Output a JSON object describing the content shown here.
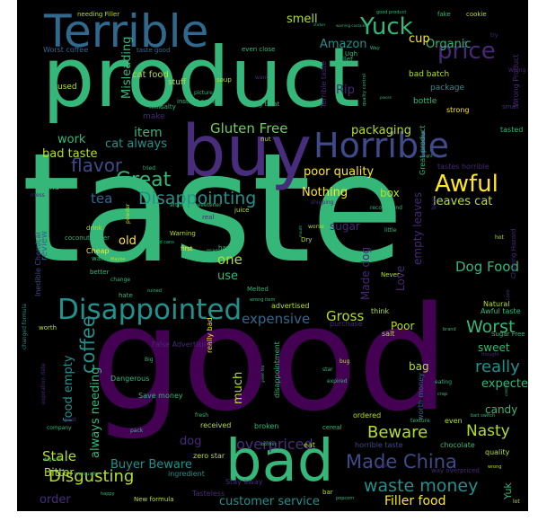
{
  "palette": {
    "background": "#000000",
    "green": "#35b779",
    "green_light": "#4cc26c",
    "teal": "#21918c",
    "teal_dark": "#26828e",
    "blue": "#31688e",
    "slate": "#3e4a89",
    "indigo": "#472d7b",
    "purple": "#440154",
    "purple_mid": "#482878",
    "yellow": "#fde725",
    "yellow_green": "#b5de2b",
    "lime": "#6ece58"
  },
  "words": [
    {
      "text": "taste",
      "color": "green",
      "rotate": 0
    },
    {
      "text": "good",
      "color": "purple",
      "rotate": 0
    },
    {
      "text": "product",
      "color": "green",
      "rotate": 0
    },
    {
      "text": "buy",
      "color": "indigo",
      "rotate": 0
    },
    {
      "text": "bad",
      "color": "green",
      "rotate": 0
    },
    {
      "text": "Terrible",
      "color": "blue",
      "rotate": 0
    },
    {
      "text": "Horrible",
      "color": "slate",
      "rotate": 0
    },
    {
      "text": "Disappointed",
      "color": "teal",
      "rotate": 0
    },
    {
      "text": "Yuck",
      "color": "green",
      "rotate": 0
    },
    {
      "text": "Awful",
      "color": "yellow",
      "rotate": 0
    },
    {
      "text": "price",
      "color": "purple_mid",
      "rotate": 0
    },
    {
      "text": "Great",
      "color": "green",
      "rotate": 0
    },
    {
      "text": "flavor",
      "color": "slate",
      "rotate": 0
    },
    {
      "text": "Disappointing",
      "color": "teal",
      "rotate": 0
    },
    {
      "text": "waste money",
      "color": "teal",
      "rotate": 0
    },
    {
      "text": "Made China",
      "color": "slate",
      "rotate": 0
    },
    {
      "text": "Beware",
      "color": "yellow_green",
      "rotate": 0
    },
    {
      "text": "Worst",
      "color": "green",
      "rotate": 0
    },
    {
      "text": "really",
      "color": "teal",
      "rotate": 0
    },
    {
      "text": "Dog Food",
      "color": "green",
      "rotate": 0
    },
    {
      "text": "Gluten Free",
      "color": "lime",
      "rotate": 0
    },
    {
      "text": "Gross",
      "color": "yellow_green",
      "rotate": 0
    },
    {
      "text": "coffee",
      "color": "teal",
      "rotate": -90
    },
    {
      "text": "Disgusting",
      "color": "yellow_green",
      "rotate": 0
    },
    {
      "text": "Nasty",
      "color": "yellow_green",
      "rotate": 0
    },
    {
      "text": "Stale",
      "color": "yellow_green",
      "rotate": 0
    },
    {
      "text": "packaging",
      "color": "yellow_green",
      "rotate": 0
    },
    {
      "text": "poor quality",
      "color": "yellow",
      "rotate": 0
    },
    {
      "text": "leaves cat",
      "color": "yellow_green",
      "rotate": 0
    },
    {
      "text": "Filler food",
      "color": "yellow",
      "rotate": 0
    },
    {
      "text": "overpriced",
      "color": "indigo",
      "rotate": 0
    },
    {
      "text": "expensive",
      "color": "blue",
      "rotate": 0
    },
    {
      "text": "customer service",
      "color": "teal",
      "rotate": 0
    },
    {
      "text": "Buyer Beware",
      "color": "teal",
      "rotate": 0
    },
    {
      "text": "expected",
      "color": "green",
      "rotate": 0
    },
    {
      "text": "Amazon",
      "color": "teal",
      "rotate": 0
    },
    {
      "text": "smell",
      "color": "yellow_green",
      "rotate": 0
    },
    {
      "text": "Organic",
      "color": "green",
      "rotate": 0
    },
    {
      "text": "cup",
      "color": "yellow",
      "rotate": 0
    },
    {
      "text": "item",
      "color": "green",
      "rotate": 0
    },
    {
      "text": "cat always",
      "color": "teal",
      "rotate": 0
    },
    {
      "text": "work",
      "color": "green",
      "rotate": 0
    },
    {
      "text": "tea",
      "color": "blue",
      "rotate": 0
    },
    {
      "text": "bad taste",
      "color": "yellow_green",
      "rotate": 0
    },
    {
      "text": "Nothing",
      "color": "yellow",
      "rotate": 0
    },
    {
      "text": "box",
      "color": "yellow_green",
      "rotate": 0
    },
    {
      "text": "candy",
      "color": "green",
      "rotate": 0
    },
    {
      "text": "sweet",
      "color": "green",
      "rotate": 0
    },
    {
      "text": "bag",
      "color": "yellow_green",
      "rotate": 0
    },
    {
      "text": "Poor",
      "color": "yellow_green",
      "rotate": 0
    },
    {
      "text": "one",
      "color": "yellow_green",
      "rotate": 0
    },
    {
      "text": "use",
      "color": "green",
      "rotate": 0
    },
    {
      "text": "old",
      "color": "yellow",
      "rotate": 0
    },
    {
      "text": "Rip",
      "color": "purple_mid",
      "rotate": 0
    },
    {
      "text": "Misleading",
      "color": "green",
      "rotate": -90
    },
    {
      "text": "food empty",
      "color": "teal",
      "rotate": -90
    },
    {
      "text": "always needing",
      "color": "green",
      "rotate": -90
    },
    {
      "text": "much",
      "color": "yellow_green",
      "rotate": -90
    },
    {
      "text": "dog",
      "color": "purple_mid",
      "rotate": 0
    },
    {
      "text": "Bitter",
      "color": "yellow_green",
      "rotate": 0
    },
    {
      "text": "order",
      "color": "indigo",
      "rotate": 0
    },
    {
      "text": "review",
      "color": "blue",
      "rotate": -90
    },
    {
      "text": "Love",
      "color": "purple_mid",
      "rotate": -90
    },
    {
      "text": "Made dog",
      "color": "purple_mid",
      "rotate": -90
    },
    {
      "text": "empty leaves",
      "color": "purple_mid",
      "rotate": -90
    },
    {
      "text": "sugar",
      "color": "purple_mid",
      "rotate": 0
    },
    {
      "text": "Yuk",
      "color": "green",
      "rotate": -90
    },
    {
      "text": "cat food",
      "color": "yellow_green",
      "rotate": 0
    },
    {
      "text": "stuff",
      "color": "yellow_green",
      "rotate": 0
    },
    {
      "text": "make",
      "color": "purple_mid",
      "rotate": 0
    },
    {
      "text": "used",
      "color": "yellow_green",
      "rotate": 0
    },
    {
      "text": "Worst coffee",
      "color": "blue",
      "rotate": 0
    },
    {
      "text": "Inedible Chemical",
      "color": "slate",
      "rotate": -90
    },
    {
      "text": "bad batch",
      "color": "yellow_green",
      "rotate": 0
    },
    {
      "text": "package",
      "color": "teal",
      "rotate": 0
    },
    {
      "text": "bottle",
      "color": "green",
      "rotate": 0
    },
    {
      "text": "strong",
      "color": "yellow",
      "rotate": 0
    },
    {
      "text": "tasted",
      "color": "green",
      "rotate": 0
    },
    {
      "text": "Great product",
      "color": "green",
      "rotate": -90
    },
    {
      "text": "Terrible taste",
      "color": "purple_mid",
      "rotate": -90
    },
    {
      "text": "Wrong Product",
      "color": "purple_mid",
      "rotate": -90
    },
    {
      "text": "tastes horrible",
      "color": "purple_mid",
      "rotate": 0
    },
    {
      "text": "Awful taste",
      "color": "green",
      "rotate": 0
    },
    {
      "text": "Natural",
      "color": "yellow_green",
      "rotate": 0
    },
    {
      "text": "Sugar Free",
      "color": "green",
      "rotate": 0
    },
    {
      "text": "worth money",
      "color": "blue",
      "rotate": -90
    },
    {
      "text": "think",
      "color": "yellow_green",
      "rotate": 0
    },
    {
      "text": "salt",
      "color": "yellow_green",
      "rotate": 0
    },
    {
      "text": "purchase",
      "color": "indigo",
      "rotate": 0
    },
    {
      "text": "advertised",
      "color": "yellow_green",
      "rotate": 0
    },
    {
      "text": "ordered",
      "color": "yellow_green",
      "rotate": 0
    },
    {
      "text": "horrible taste",
      "color": "slate",
      "rotate": 0
    },
    {
      "text": "chocolate",
      "color": "green",
      "rotate": 0
    },
    {
      "text": "even",
      "color": "yellow_green",
      "rotate": 0
    },
    {
      "text": "quality",
      "color": "yellow_green",
      "rotate": 0
    },
    {
      "text": "Tasteless",
      "color": "indigo",
      "rotate": 0
    },
    {
      "text": "Stay away",
      "color": "purple_mid",
      "rotate": 0
    },
    {
      "text": "ingredient",
      "color": "teal",
      "rotate": 0
    },
    {
      "text": "zero star",
      "color": "yellow_green",
      "rotate": 0
    },
    {
      "text": "received",
      "color": "yellow_green",
      "rotate": 0
    },
    {
      "text": "broken",
      "color": "green",
      "rotate": 0
    },
    {
      "text": "Save money",
      "color": "green",
      "rotate": 0
    },
    {
      "text": "really bad",
      "color": "yellow",
      "rotate": -90
    },
    {
      "text": "disappointment",
      "color": "green",
      "rotate": -90
    },
    {
      "text": "False Advertising",
      "color": "purple_mid",
      "rotate": 0
    },
    {
      "text": "Dangerous",
      "color": "green",
      "rotate": 0
    },
    {
      "text": "Cheap",
      "color": "yellow",
      "rotate": 0
    },
    {
      "text": "water",
      "color": "green",
      "rotate": 0
    },
    {
      "text": "better",
      "color": "green",
      "rotate": 0
    },
    {
      "text": "hate",
      "color": "green",
      "rotate": 0
    },
    {
      "text": "coconut water",
      "color": "green",
      "rotate": 0
    },
    {
      "text": "drink",
      "color": "yellow_green",
      "rotate": 0
    },
    {
      "text": "first",
      "color": "yellow",
      "rotate": 0
    },
    {
      "text": "Melted",
      "color": "green",
      "rotate": 0
    },
    {
      "text": "Warning",
      "color": "yellow_green",
      "rotate": 0
    },
    {
      "text": "real",
      "color": "purple_mid",
      "rotate": 0
    },
    {
      "text": "juice",
      "color": "yellow_green",
      "rotate": 0
    },
    {
      "text": "instant coffee",
      "color": "green",
      "rotate": 0
    },
    {
      "text": "salty",
      "color": "green",
      "rotate": 0
    },
    {
      "text": "milk",
      "color": "green",
      "rotate": 0
    },
    {
      "text": "soup",
      "color": "yellow_green",
      "rotate": 0
    },
    {
      "text": "dog treat",
      "color": "green",
      "rotate": 0
    },
    {
      "text": "taste good",
      "color": "blue",
      "rotate": 0
    },
    {
      "text": "needing Filler",
      "color": "yellow_green",
      "rotate": 0
    },
    {
      "text": "even close",
      "color": "green",
      "rotate": 0
    },
    {
      "text": "seller",
      "color": "green",
      "rotate": 0
    },
    {
      "text": "Ugh",
      "color": "green",
      "rotate": 0
    },
    {
      "text": "fake",
      "color": "green",
      "rotate": 0
    },
    {
      "text": "cookie",
      "color": "yellow_green",
      "rotate": 0
    },
    {
      "text": "try",
      "color": "purple_mid",
      "rotate": 0
    },
    {
      "text": "Wrong Product",
      "color": "purple_mid",
      "rotate": 0
    },
    {
      "text": "small",
      "color": "purple_mid",
      "rotate": 0
    },
    {
      "text": "Choking Hazard",
      "color": "purple_mid",
      "rotate": -90
    },
    {
      "text": "bean",
      "color": "purple_mid",
      "rotate": -90
    },
    {
      "text": "hot",
      "color": "yellow_green",
      "rotate": 0
    },
    {
      "text": "Never",
      "color": "yellow_green",
      "rotate": 0
    },
    {
      "text": "little",
      "color": "green",
      "rotate": 0
    },
    {
      "text": "recommend",
      "color": "green",
      "rotate": 0
    },
    {
      "text": "worse",
      "color": "yellow_green",
      "rotate": 0
    },
    {
      "text": "shipping",
      "color": "purple_mid",
      "rotate": 0
    },
    {
      "text": "Dry",
      "color": "yellow_green",
      "rotate": 0
    },
    {
      "text": "hard",
      "color": "green",
      "rotate": 0
    },
    {
      "text": "many",
      "color": "green",
      "rotate": 0
    },
    {
      "text": "dented cans",
      "color": "green",
      "rotate": 0
    },
    {
      "text": "wrong item",
      "color": "green",
      "rotate": 0
    },
    {
      "text": "ruined",
      "color": "green",
      "rotate": 0
    },
    {
      "text": "change",
      "color": "green",
      "rotate": 0
    },
    {
      "text": "Maybe",
      "color": "yellow_green",
      "rotate": 0
    },
    {
      "text": "powder",
      "color": "yellow_green",
      "rotate": -90
    },
    {
      "text": "artificial sweetener",
      "color": "green",
      "rotate": 0
    },
    {
      "text": "tried",
      "color": "green",
      "rotate": 0
    },
    {
      "text": "picture",
      "color": "green",
      "rotate": 0
    },
    {
      "text": "want",
      "color": "purple_mid",
      "rotate": 0
    },
    {
      "text": "nut",
      "color": "yellow_green",
      "rotate": 0
    },
    {
      "text": "Bland",
      "color": "green",
      "rotate": 0
    },
    {
      "text": "mess",
      "color": "purple_mid",
      "rotate": 0
    },
    {
      "text": "worth",
      "color": "yellow_green",
      "rotate": 0
    },
    {
      "text": "changed formula",
      "color": "teal",
      "rotate": -90
    },
    {
      "text": "expiration date",
      "color": "purple_mid",
      "rotate": -90
    },
    {
      "text": "best",
      "color": "purple_mid",
      "rotate": 0
    },
    {
      "text": "company",
      "color": "green",
      "rotate": 0
    },
    {
      "text": "dog sick",
      "color": "green",
      "rotate": 0
    },
    {
      "text": "low quality",
      "color": "green",
      "rotate": 0
    },
    {
      "text": "happy",
      "color": "green",
      "rotate": 0
    },
    {
      "text": "New formula",
      "color": "yellow_green",
      "rotate": 0
    },
    {
      "text": "pack",
      "color": "green",
      "rotate": 0
    },
    {
      "text": "fresh",
      "color": "green",
      "rotate": 0
    },
    {
      "text": "Big",
      "color": "green",
      "rotate": 0
    },
    {
      "text": "bother",
      "color": "green",
      "rotate": 0
    },
    {
      "text": "eat",
      "color": "yellow_green",
      "rotate": 0
    },
    {
      "text": "cereal",
      "color": "green",
      "rotate": 0
    },
    {
      "text": "bar",
      "color": "yellow_green",
      "rotate": 0
    },
    {
      "text": "popcorn",
      "color": "green",
      "rotate": 0
    },
    {
      "text": "weak",
      "color": "purple_mid",
      "rotate": 0
    },
    {
      "text": "way overpriced",
      "color": "purple_mid",
      "rotate": 0
    },
    {
      "text": "lot",
      "color": "yellow_green",
      "rotate": 0
    },
    {
      "text": "wrong",
      "color": "yellow_green",
      "rotate": 0
    },
    {
      "text": "bait switch",
      "color": "green",
      "rotate": 0
    },
    {
      "text": "texture",
      "color": "green",
      "rotate": 0
    },
    {
      "text": "eating",
      "color": "green",
      "rotate": 0
    },
    {
      "text": "crap",
      "color": "green",
      "rotate": 0
    },
    {
      "text": "bug",
      "color": "yellow_green",
      "rotate": 0
    },
    {
      "text": "star",
      "color": "green",
      "rotate": 0
    },
    {
      "text": "expired",
      "color": "green",
      "rotate": 0
    },
    {
      "text": "thought",
      "color": "purple_mid",
      "rotate": 0
    },
    {
      "text": "buy product",
      "color": "purple_mid",
      "rotate": -90
    },
    {
      "text": "Look",
      "color": "purple_mid",
      "rotate": -90
    },
    {
      "text": "brand",
      "color": "green",
      "rotate": 0
    },
    {
      "text": "right",
      "color": "green",
      "rotate": 0
    },
    {
      "text": "good product",
      "color": "green",
      "rotate": 0
    },
    {
      "text": "warning contains",
      "color": "green",
      "rotate": 0
    },
    {
      "text": "Way",
      "color": "green",
      "rotate": 0
    },
    {
      "text": "quality control",
      "color": "green",
      "rotate": -90
    },
    {
      "text": "pieces",
      "color": "green",
      "rotate": 0
    },
    {
      "text": "sticker",
      "color": "green",
      "rotate": 0
    },
    {
      "text": "green tea",
      "color": "green",
      "rotate": -90
    },
    {
      "text": "mouth",
      "color": "green",
      "rotate": -90
    },
    {
      "text": "candy",
      "color": "green",
      "rotate": -90
    }
  ]
}
